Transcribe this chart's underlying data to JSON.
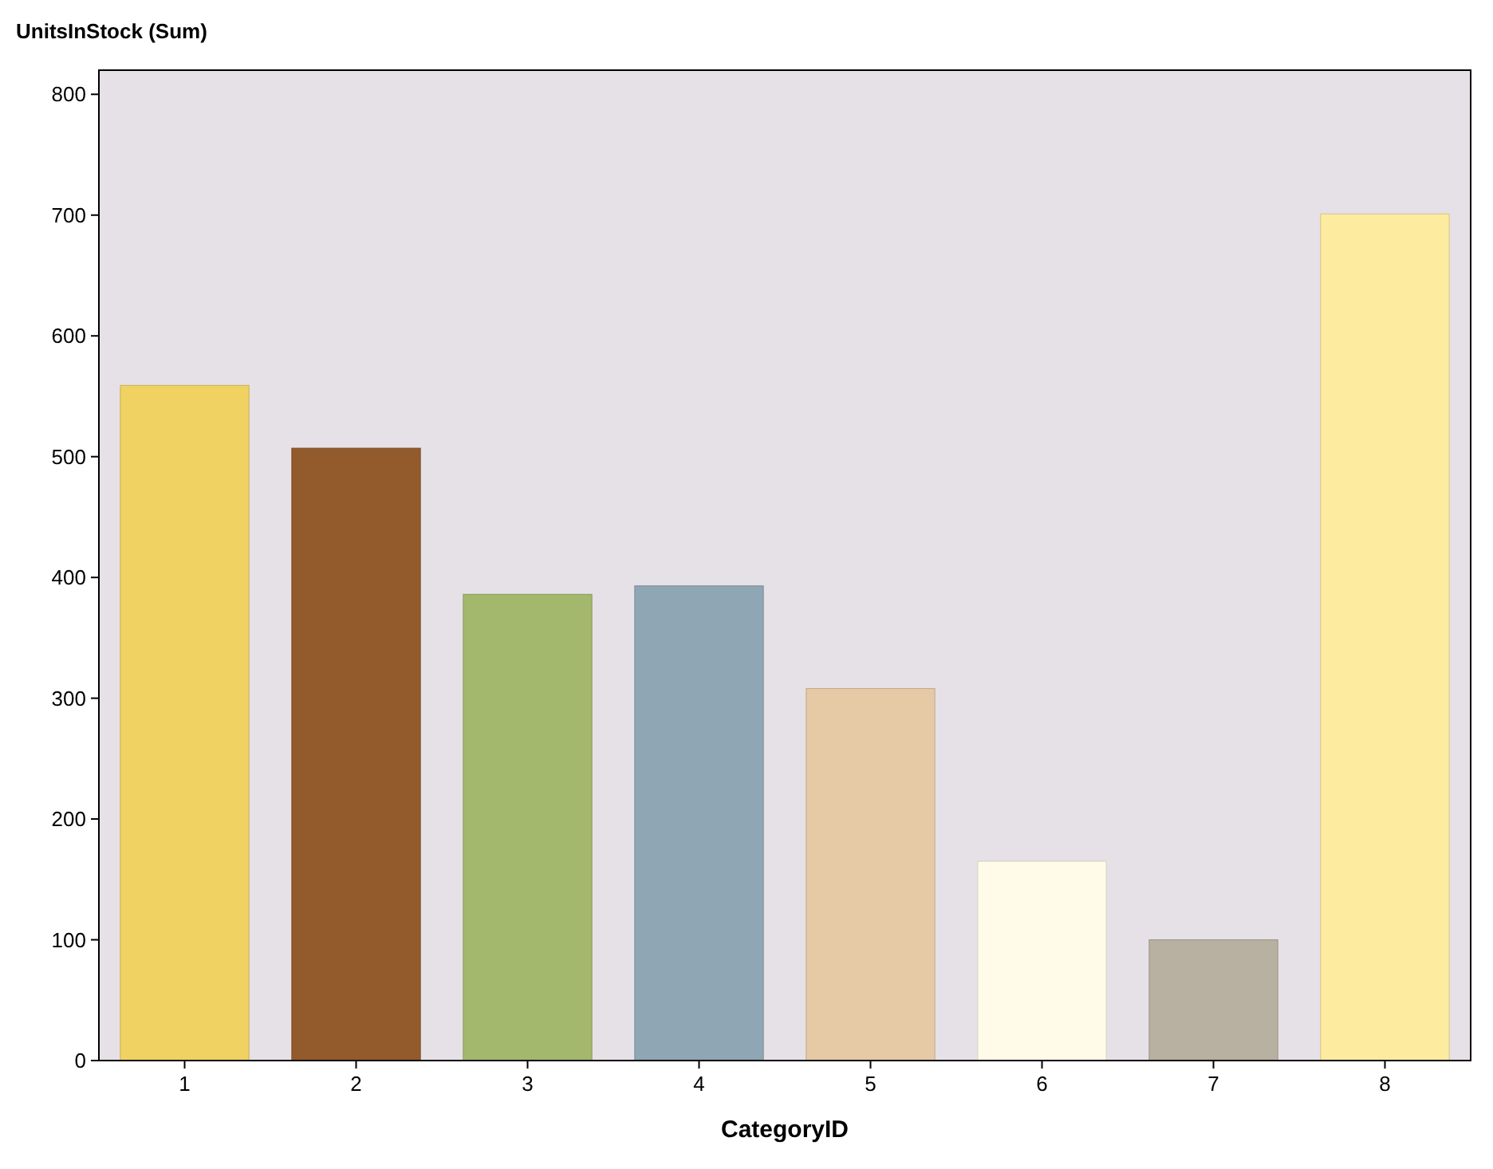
{
  "chart_data": {
    "type": "bar",
    "ylabel": "UnitsInStock (Sum)",
    "xlabel": "CategoryID",
    "categories": [
      "1",
      "2",
      "3",
      "4",
      "5",
      "6",
      "7",
      "8"
    ],
    "values": [
      559,
      507,
      386,
      393,
      308,
      165,
      100,
      701
    ],
    "colors": [
      "#f0d262",
      "#935a2c",
      "#a3b86c",
      "#8fa6b4",
      "#e6c9a5",
      "#fffbe8",
      "#b8b0a0",
      "#fdeba0"
    ],
    "ylim": [
      0,
      820
    ],
    "yticks": [
      0,
      100,
      200,
      300,
      400,
      500,
      600,
      700,
      800
    ],
    "grid": false
  }
}
